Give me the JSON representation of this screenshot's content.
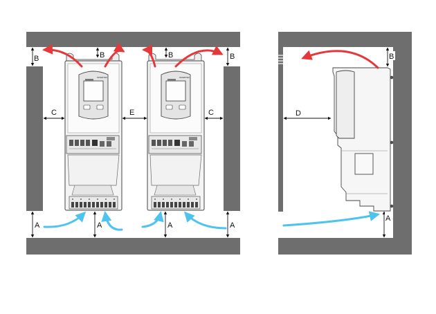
{
  "labels": {
    "top_left": "B",
    "top_mid": "B",
    "top_right_pair": "B",
    "top_right_wall": "B",
    "side_left": "C",
    "between": "E",
    "side_right": "C",
    "bottom_left": "A",
    "bottom_mid": "A",
    "bottom_right": "A",
    "side_view_top": "B",
    "side_view_depth": "D",
    "side_view_bottom": "A"
  },
  "device_brand": "INVERTEK",
  "colors": {
    "wall": "#6e6e6e",
    "hot_air": "#e5383b",
    "cool_air": "#4ec3ee",
    "device_body": "#f4f4f4",
    "device_outline": "#444444"
  },
  "icons": {
    "hot_air": "red-exhaust-arrow",
    "cool_air": "blue-intake-arrow",
    "dimension": "dimension-arrow"
  }
}
